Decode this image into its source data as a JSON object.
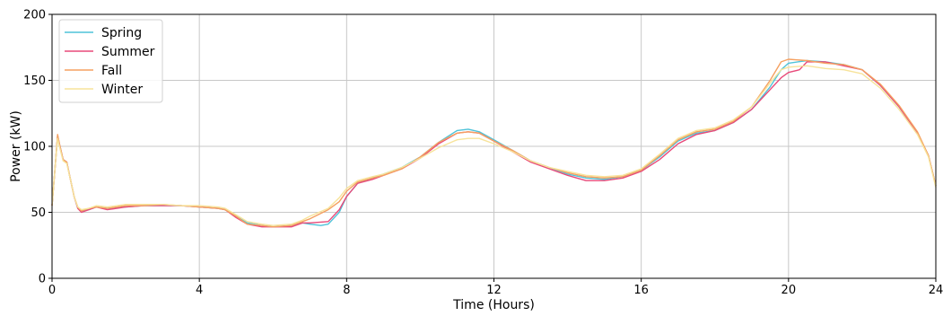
{
  "chart_data": {
    "type": "line",
    "xlabel": "Time (Hours)",
    "ylabel": "Power (kW)",
    "xlim": [
      0,
      24
    ],
    "ylim": [
      0,
      200
    ],
    "xticks": [
      0,
      4,
      8,
      12,
      16,
      20,
      24
    ],
    "yticks": [
      0,
      50,
      100,
      150,
      200
    ],
    "grid": true,
    "legend": "top-left",
    "series": [
      {
        "name": "Spring",
        "color": "#4fc3d9",
        "points": [
          [
            0,
            55
          ],
          [
            0.1,
            90
          ],
          [
            0.15,
            108
          ],
          [
            0.2,
            102
          ],
          [
            0.3,
            90
          ],
          [
            0.4,
            88
          ],
          [
            0.5,
            75
          ],
          [
            0.6,
            62
          ],
          [
            0.7,
            53
          ],
          [
            0.8,
            51
          ],
          [
            1.0,
            52
          ],
          [
            1.2,
            54
          ],
          [
            1.5,
            53
          ],
          [
            2,
            54
          ],
          [
            2.5,
            55
          ],
          [
            3,
            55
          ],
          [
            3.5,
            55
          ],
          [
            4,
            54
          ],
          [
            4.5,
            53
          ],
          [
            4.7,
            52
          ],
          [
            5,
            47
          ],
          [
            5.3,
            42
          ],
          [
            5.7,
            40
          ],
          [
            6,
            39
          ],
          [
            6.5,
            40
          ],
          [
            6.8,
            42
          ],
          [
            7,
            41
          ],
          [
            7.3,
            40
          ],
          [
            7.5,
            41
          ],
          [
            7.8,
            50
          ],
          [
            8,
            62
          ],
          [
            8.3,
            72
          ],
          [
            8.7,
            76
          ],
          [
            9,
            79
          ],
          [
            9.5,
            84
          ],
          [
            10,
            92
          ],
          [
            10.5,
            103
          ],
          [
            11,
            112
          ],
          [
            11.3,
            113
          ],
          [
            11.6,
            111
          ],
          [
            12,
            105
          ],
          [
            12.5,
            97
          ],
          [
            13,
            89
          ],
          [
            13.5,
            84
          ],
          [
            14,
            79
          ],
          [
            14.5,
            76
          ],
          [
            15,
            75
          ],
          [
            15.5,
            77
          ],
          [
            16,
            82
          ],
          [
            16.5,
            92
          ],
          [
            17,
            104
          ],
          [
            17.5,
            110
          ],
          [
            18,
            112
          ],
          [
            18.5,
            118
          ],
          [
            19,
            128
          ],
          [
            19.5,
            145
          ],
          [
            19.8,
            158
          ],
          [
            20,
            163
          ],
          [
            20.5,
            165
          ],
          [
            21,
            164
          ],
          [
            21.5,
            162
          ],
          [
            22,
            158
          ],
          [
            22.5,
            146
          ],
          [
            23,
            130
          ],
          [
            23.5,
            110
          ],
          [
            23.8,
            93
          ],
          [
            24,
            70
          ]
        ]
      },
      {
        "name": "Summer",
        "color": "#e84a7a",
        "points": [
          [
            0,
            55
          ],
          [
            0.1,
            90
          ],
          [
            0.15,
            108
          ],
          [
            0.2,
            102
          ],
          [
            0.3,
            90
          ],
          [
            0.4,
            88
          ],
          [
            0.5,
            75
          ],
          [
            0.6,
            62
          ],
          [
            0.7,
            53
          ],
          [
            0.8,
            50
          ],
          [
            1.0,
            52
          ],
          [
            1.2,
            54
          ],
          [
            1.5,
            52
          ],
          [
            2,
            54
          ],
          [
            2.5,
            55
          ],
          [
            3,
            55
          ],
          [
            3.5,
            55
          ],
          [
            4,
            54
          ],
          [
            4.5,
            53
          ],
          [
            4.7,
            52
          ],
          [
            5,
            46
          ],
          [
            5.3,
            41
          ],
          [
            5.7,
            39
          ],
          [
            6,
            39
          ],
          [
            6.5,
            39
          ],
          [
            6.8,
            42
          ],
          [
            7,
            42
          ],
          [
            7.5,
            43
          ],
          [
            7.8,
            52
          ],
          [
            8,
            62
          ],
          [
            8.3,
            72
          ],
          [
            8.7,
            75
          ],
          [
            9,
            78
          ],
          [
            9.5,
            83
          ],
          [
            10,
            91
          ],
          [
            10.5,
            102
          ],
          [
            11,
            110
          ],
          [
            11.3,
            111
          ],
          [
            11.6,
            110
          ],
          [
            12,
            104
          ],
          [
            12.5,
            96
          ],
          [
            13,
            88
          ],
          [
            13.5,
            83
          ],
          [
            14,
            78
          ],
          [
            14.5,
            74
          ],
          [
            15,
            74
          ],
          [
            15.5,
            76
          ],
          [
            16,
            81
          ],
          [
            16.5,
            90
          ],
          [
            17,
            102
          ],
          [
            17.5,
            109
          ],
          [
            18,
            112
          ],
          [
            18.5,
            118
          ],
          [
            19,
            128
          ],
          [
            19.5,
            143
          ],
          [
            19.8,
            152
          ],
          [
            20,
            156
          ],
          [
            20.3,
            158
          ],
          [
            20.5,
            164
          ],
          [
            21,
            164
          ],
          [
            21.5,
            161
          ],
          [
            22,
            158
          ],
          [
            22.5,
            146
          ],
          [
            23,
            130
          ],
          [
            23.5,
            110
          ],
          [
            23.8,
            93
          ],
          [
            24,
            70
          ]
        ]
      },
      {
        "name": "Fall",
        "color": "#f5a060",
        "points": [
          [
            0,
            55
          ],
          [
            0.1,
            90
          ],
          [
            0.15,
            109
          ],
          [
            0.2,
            102
          ],
          [
            0.3,
            90
          ],
          [
            0.4,
            88
          ],
          [
            0.5,
            75
          ],
          [
            0.6,
            62
          ],
          [
            0.7,
            54
          ],
          [
            0.8,
            51
          ],
          [
            1.0,
            53
          ],
          [
            1.2,
            54
          ],
          [
            1.5,
            53
          ],
          [
            2,
            55
          ],
          [
            2.5,
            55
          ],
          [
            3,
            56
          ],
          [
            3.5,
            55
          ],
          [
            4,
            54
          ],
          [
            4.5,
            53
          ],
          [
            4.7,
            52
          ],
          [
            5,
            47
          ],
          [
            5.3,
            41
          ],
          [
            5.7,
            40
          ],
          [
            6,
            39
          ],
          [
            6.5,
            40
          ],
          [
            6.8,
            43
          ],
          [
            7,
            45
          ],
          [
            7.5,
            52
          ],
          [
            7.8,
            58
          ],
          [
            8,
            66
          ],
          [
            8.3,
            73
          ],
          [
            8.7,
            76
          ],
          [
            9,
            78
          ],
          [
            9.5,
            83
          ],
          [
            10,
            92
          ],
          [
            10.5,
            103
          ],
          [
            11,
            110
          ],
          [
            11.3,
            111
          ],
          [
            11.6,
            110
          ],
          [
            12,
            104
          ],
          [
            12.5,
            97
          ],
          [
            13,
            89
          ],
          [
            13.5,
            84
          ],
          [
            14,
            80
          ],
          [
            14.5,
            77
          ],
          [
            15,
            76
          ],
          [
            15.5,
            77
          ],
          [
            16,
            82
          ],
          [
            16.5,
            93
          ],
          [
            17,
            105
          ],
          [
            17.5,
            111
          ],
          [
            18,
            113
          ],
          [
            18.5,
            119
          ],
          [
            19,
            130
          ],
          [
            19.5,
            150
          ],
          [
            19.8,
            164
          ],
          [
            20,
            166
          ],
          [
            20.5,
            165
          ],
          [
            21,
            163
          ],
          [
            21.5,
            162
          ],
          [
            22,
            158
          ],
          [
            22.5,
            147
          ],
          [
            23,
            131
          ],
          [
            23.5,
            111
          ],
          [
            23.8,
            93
          ],
          [
            24,
            70
          ]
        ]
      },
      {
        "name": "Winter",
        "color": "#f7e39a",
        "points": [
          [
            0,
            55
          ],
          [
            0.1,
            90
          ],
          [
            0.15,
            106
          ],
          [
            0.2,
            100
          ],
          [
            0.3,
            89
          ],
          [
            0.4,
            87
          ],
          [
            0.5,
            75
          ],
          [
            0.6,
            62
          ],
          [
            0.7,
            54
          ],
          [
            0.8,
            52
          ],
          [
            1.0,
            53
          ],
          [
            1.2,
            55
          ],
          [
            1.5,
            54
          ],
          [
            2,
            56
          ],
          [
            2.5,
            56
          ],
          [
            3,
            56
          ],
          [
            3.5,
            55
          ],
          [
            4,
            55
          ],
          [
            4.5,
            54
          ],
          [
            4.7,
            53
          ],
          [
            5,
            48
          ],
          [
            5.3,
            43
          ],
          [
            5.7,
            41
          ],
          [
            6,
            40
          ],
          [
            6.5,
            41
          ],
          [
            6.8,
            44
          ],
          [
            7,
            47
          ],
          [
            7.5,
            53
          ],
          [
            7.8,
            61
          ],
          [
            8,
            68
          ],
          [
            8.3,
            74
          ],
          [
            8.7,
            77
          ],
          [
            9,
            79
          ],
          [
            9.5,
            84
          ],
          [
            10,
            91
          ],
          [
            10.5,
            99
          ],
          [
            11,
            105
          ],
          [
            11.3,
            106
          ],
          [
            11.6,
            106
          ],
          [
            12,
            102
          ],
          [
            12.5,
            96
          ],
          [
            13,
            89
          ],
          [
            13.5,
            84
          ],
          [
            14,
            81
          ],
          [
            14.5,
            78
          ],
          [
            15,
            77
          ],
          [
            15.5,
            78
          ],
          [
            16,
            83
          ],
          [
            16.5,
            94
          ],
          [
            17,
            106
          ],
          [
            17.5,
            112
          ],
          [
            18,
            114
          ],
          [
            18.5,
            120
          ],
          [
            19,
            130
          ],
          [
            19.5,
            148
          ],
          [
            19.8,
            158
          ],
          [
            20,
            160
          ],
          [
            20.5,
            161
          ],
          [
            21,
            159
          ],
          [
            21.5,
            158
          ],
          [
            22,
            155
          ],
          [
            22.5,
            144
          ],
          [
            23,
            128
          ],
          [
            23.5,
            109
          ],
          [
            23.8,
            92
          ],
          [
            24,
            69
          ]
        ]
      }
    ]
  }
}
